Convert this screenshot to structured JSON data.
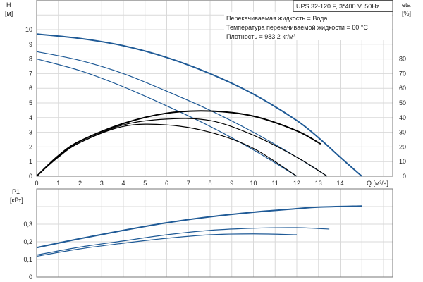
{
  "title": "UPS 32-120 F, 3*400 V, 50Hz",
  "info_lines": [
    "Перекачиваемая жидкость = Вода",
    "Температура перекачиваемой жидкости = 60 °C",
    "Плотность = 983.2 кг/м³"
  ],
  "colors": {
    "head": "#1f5a96",
    "eta": "#000000",
    "power": "#1f5a96",
    "grid": "#d9d9d9"
  },
  "chart_data": [
    {
      "type": "line",
      "ylabel": "H",
      "yunit": "[м]",
      "y2label": "eta",
      "y2unit": "[%]",
      "xlabel": "Q [м³/ч]",
      "xlim": [
        0,
        16.5
      ],
      "ylim": [
        0,
        12
      ],
      "y2lim": [
        0,
        120
      ],
      "xticks": [
        "0",
        "1",
        "2",
        "3",
        "4",
        "5",
        "6",
        "7",
        "8",
        "9",
        "10",
        "11",
        "12",
        "13",
        "14"
      ],
      "yticks": [
        "0",
        "1",
        "2",
        "3",
        "4",
        "5",
        "6",
        "7",
        "8",
        "9",
        "10"
      ],
      "y2ticks": [
        "0",
        "10",
        "20",
        "30",
        "40",
        "50",
        "60",
        "70",
        "80"
      ],
      "grid": true,
      "series": [
        {
          "kind": "head",
          "x": [
            0,
            2,
            4,
            6,
            8,
            10,
            12,
            13.1,
            14,
            15
          ],
          "y": [
            9.7,
            9.4,
            8.9,
            8.1,
            7.0,
            5.6,
            3.8,
            2.5,
            1.3,
            0
          ]
        },
        {
          "kind": "head",
          "x": [
            0,
            2,
            4,
            6,
            8,
            10,
            12,
            13.4
          ],
          "y": [
            8.5,
            7.9,
            7.0,
            5.8,
            4.5,
            3.0,
            1.3,
            0
          ]
        },
        {
          "kind": "head",
          "x": [
            0,
            2,
            4,
            6,
            8,
            10,
            12
          ],
          "y": [
            8.0,
            7.2,
            6.1,
            4.8,
            3.4,
            1.8,
            0
          ]
        },
        {
          "kind": "eta",
          "x": [
            0,
            1,
            2,
            4,
            6,
            8,
            10,
            12,
            13.1
          ],
          "y": [
            0,
            14,
            24,
            36,
            43,
            44.5,
            41,
            31,
            22
          ]
        },
        {
          "kind": "eta",
          "x": [
            0,
            1,
            2,
            4,
            6,
            8,
            10,
            12,
            13.4
          ],
          "y": [
            0,
            13.5,
            23,
            35,
            39,
            38,
            28,
            13,
            0
          ]
        },
        {
          "kind": "eta",
          "x": [
            0,
            1,
            2,
            4,
            6,
            8,
            10,
            12
          ],
          "y": [
            0,
            13,
            23,
            34,
            35,
            30,
            19,
            0
          ]
        }
      ]
    },
    {
      "type": "line",
      "ylabel": "P1",
      "yunit": "[кВт]",
      "xlim": [
        0,
        16.5
      ],
      "ylim": [
        0,
        0.45
      ],
      "yticks": [
        "0",
        "0,1",
        "0,2",
        "0,3"
      ],
      "grid": true,
      "series": [
        {
          "kind": "power",
          "x": [
            0,
            2,
            4,
            6,
            8,
            10,
            12,
            13,
            15
          ],
          "y": [
            0.167,
            0.218,
            0.265,
            0.308,
            0.342,
            0.368,
            0.388,
            0.397,
            0.403
          ]
        },
        {
          "kind": "power",
          "x": [
            0,
            2,
            4,
            6,
            8,
            10,
            12,
            13.5
          ],
          "y": [
            0.125,
            0.17,
            0.205,
            0.24,
            0.265,
            0.277,
            0.28,
            0.272
          ]
        },
        {
          "kind": "power",
          "x": [
            0,
            2,
            4,
            6,
            8,
            10,
            12
          ],
          "y": [
            0.118,
            0.16,
            0.192,
            0.22,
            0.24,
            0.245,
            0.24
          ]
        }
      ]
    }
  ]
}
